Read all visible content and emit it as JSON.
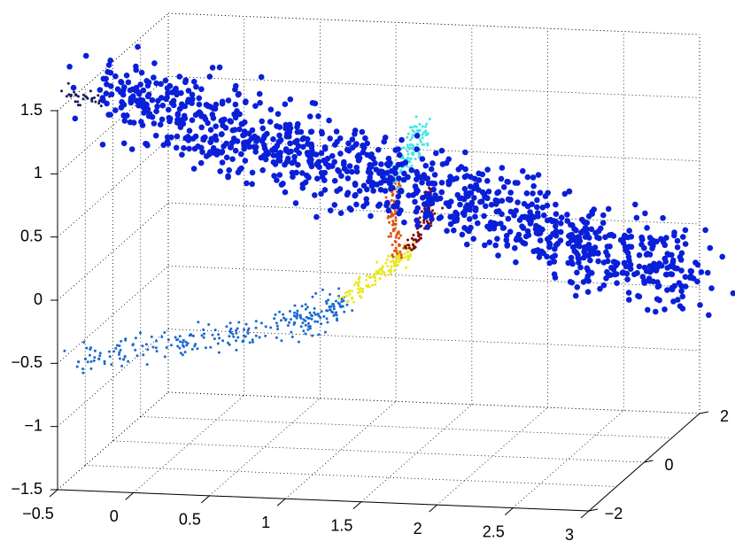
{
  "chart_data": {
    "type": "scatter3d",
    "title": "",
    "xlabel": "",
    "ylabel": "",
    "zlabel": "",
    "xlim": [
      -0.5,
      3
    ],
    "ylim": [
      -2,
      2
    ],
    "zlim": [
      -1.5,
      1.5
    ],
    "x_ticks": [
      "−0.5",
      "0",
      "0.5",
      "1",
      "1.5",
      "2",
      "2.5",
      "3"
    ],
    "y_ticks": [
      "−2",
      "0",
      "2"
    ],
    "z_ticks": [
      "−1.5",
      "−1",
      "−0.5",
      "0",
      "0.5",
      "1",
      "1.5"
    ],
    "grid": true,
    "legend": "none",
    "series": [
      {
        "color": "#0a1fd8",
        "marker_size": "large",
        "shape": "straight tube",
        "from": [
          -0.3,
          -1.2,
          1.5
        ],
        "to": [
          2.9,
          2.0,
          -0.4
        ],
        "spread": 0.15,
        "count": 1100
      },
      {
        "color": "#1a6ad0",
        "marker_size": "small",
        "shape": "curved arm",
        "path": [
          [
            -0.45,
            -1.5,
            -0.55
          ],
          [
            0.2,
            -0.9,
            -0.5
          ],
          [
            0.8,
            -0.4,
            -0.42
          ],
          [
            1.05,
            -0.15,
            -0.28
          ]
        ],
        "spread": 0.06,
        "count": 260
      },
      {
        "color": "#e8e820",
        "marker_size": "small",
        "shape": "curved arm",
        "path": [
          [
            1.05,
            -0.15,
            -0.28
          ],
          [
            1.25,
            0.1,
            -0.1
          ],
          [
            1.4,
            0.25,
            0.05
          ]
        ],
        "spread": 0.03,
        "count": 120
      },
      {
        "color": "#e05010",
        "marker_size": "small",
        "shape": "curved arm",
        "path": [
          [
            1.35,
            0.2,
            0.0
          ],
          [
            1.3,
            0.25,
            0.3
          ],
          [
            1.3,
            0.3,
            0.6
          ]
        ],
        "spread": 0.025,
        "count": 100
      },
      {
        "color": "#7a0a10",
        "marker_size": "small",
        "shape": "curved arm",
        "path": [
          [
            1.4,
            0.25,
            0.05
          ],
          [
            1.5,
            0.35,
            0.3
          ],
          [
            1.55,
            0.4,
            0.55
          ]
        ],
        "spread": 0.025,
        "count": 90
      },
      {
        "color": "#40e6e6",
        "marker_size": "small",
        "shape": "curved arm",
        "path": [
          [
            1.3,
            0.3,
            0.6
          ],
          [
            1.4,
            0.4,
            0.8
          ],
          [
            1.45,
            0.45,
            1.0
          ]
        ],
        "spread": 0.04,
        "count": 110
      },
      {
        "color": "#1a1a60",
        "marker_size": "small",
        "shape": "curved arm",
        "path": [
          [
            -0.55,
            -1.35,
            1.5
          ],
          [
            -0.35,
            -1.2,
            1.45
          ]
        ],
        "spread": 0.03,
        "count": 35
      }
    ]
  }
}
